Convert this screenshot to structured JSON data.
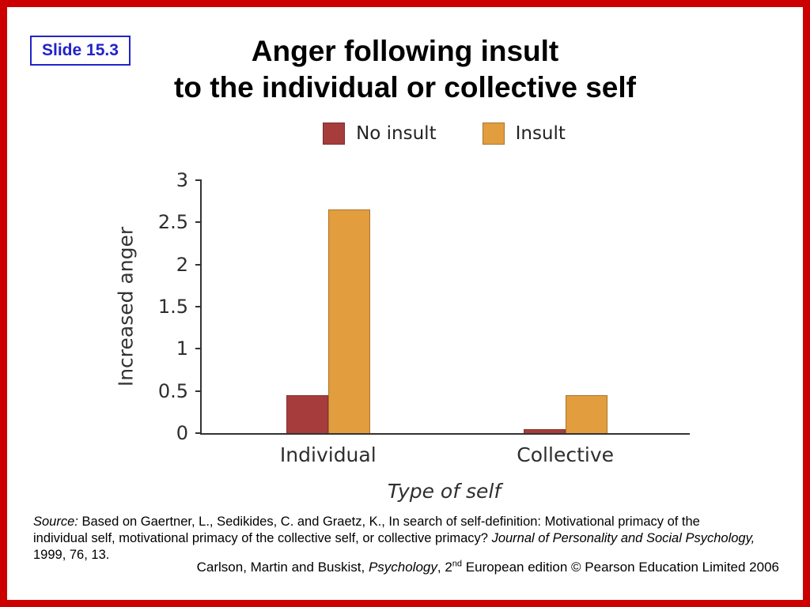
{
  "page": {
    "slide_label": "Slide 15.3",
    "title_line1": "Anger following insult",
    "title_line2": "to the individual or collective self"
  },
  "chart_data": {
    "type": "bar",
    "categories": [
      "Individual",
      "Collective"
    ],
    "series": [
      {
        "name": "No insult",
        "color": "#a63c3c",
        "values": [
          0.45,
          0.05
        ]
      },
      {
        "name": "Insult",
        "color": "#e29d3e",
        "values": [
          2.65,
          0.45
        ]
      }
    ],
    "title": "Anger following insult to the individual or collective self",
    "xlabel": "Type of self",
    "ylabel": "Increased anger",
    "ylim": [
      0,
      3
    ],
    "yticks": [
      3,
      2.5,
      2,
      1.5,
      1,
      0.5,
      0
    ],
    "legend_position": "top",
    "grid": false
  },
  "source": {
    "prefix_italic": "Source:",
    "text1": " Based on Gaertner, L., Sedikides, C. and Graetz, K., In search of self-definition: Motivational primacy of the individual self, motivational primacy of the collective self, or collective primacy? ",
    "journal_italic": "Journal of Personality and Social Psychology,",
    "text2": " 1999, 76, 13."
  },
  "footer": {
    "pre": "Carlson, Martin and Buskist, ",
    "book_italic": "Psychology",
    "mid": ", 2",
    "sup": "nd",
    "post": " European edition © Pearson Education Limited 2006"
  },
  "colors": {
    "frame": "#cc0000",
    "slide_label_blue": "#2222cc",
    "axis": "#333333"
  }
}
